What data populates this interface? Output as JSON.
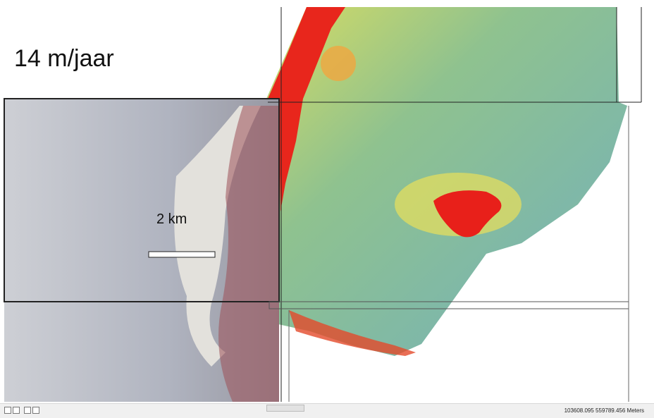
{
  "map": {
    "annotation": "14 m/jaar",
    "scale_label": "2 km"
  },
  "status_bar": {
    "coordinates": "103608.095  559789.456 Meters"
  }
}
